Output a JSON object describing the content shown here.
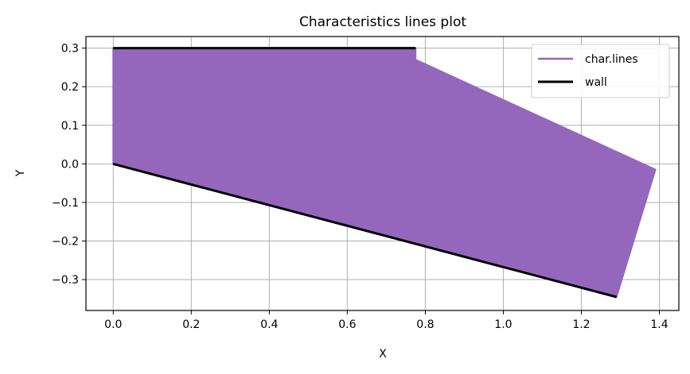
{
  "chart_data": {
    "type": "line",
    "title": "Characteristics lines plot",
    "xlabel": "X",
    "ylabel": "Y",
    "xlim": [
      -0.07,
      1.45
    ],
    "ylim": [
      -0.38,
      0.33
    ],
    "xticks": [
      0.0,
      0.2,
      0.4,
      0.6,
      0.8,
      1.0,
      1.2,
      1.4
    ],
    "xtick_labels": [
      "0.0",
      "0.2",
      "0.4",
      "0.6",
      "0.8",
      "1.0",
      "1.2",
      "1.4"
    ],
    "yticks": [
      0.3,
      0.2,
      0.1,
      0.0,
      -0.1,
      -0.2,
      -0.3
    ],
    "ytick_labels": [
      "0.3",
      "0.2",
      "0.1",
      "0.0",
      "−0.1",
      "−0.2",
      "−0.3"
    ],
    "grid": true,
    "legend_position": "top-right",
    "series": [
      {
        "name": "char.lines",
        "color": "#9467bd",
        "kind": "filled-region",
        "points": [
          [
            0.0,
            0.3
          ],
          [
            0.775,
            0.3
          ],
          [
            0.775,
            0.27
          ],
          [
            1.39,
            -0.015
          ],
          [
            1.29,
            -0.345
          ],
          [
            0.0,
            0.0
          ]
        ]
      },
      {
        "name": "wall",
        "color": "#000000",
        "kind": "polylines",
        "segments": [
          [
            [
              0.0,
              0.3
            ],
            [
              0.775,
              0.3
            ]
          ],
          [
            [
              0.0,
              0.0
            ],
            [
              1.29,
              -0.345
            ]
          ]
        ]
      }
    ]
  }
}
